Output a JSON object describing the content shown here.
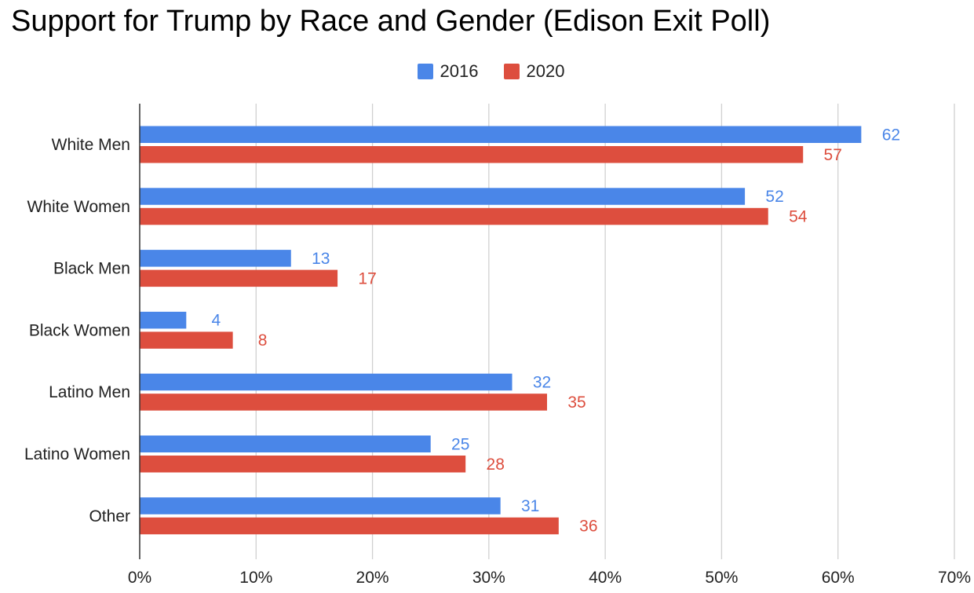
{
  "chart_data": {
    "type": "bar",
    "orientation": "horizontal",
    "title": "Support for Trump by Race and Gender (Edison Exit Poll)",
    "categories": [
      "White Men",
      "White Women",
      "Black Men",
      "Black Women",
      "Latino Men",
      "Latino Women",
      "Other"
    ],
    "series": [
      {
        "name": "2016",
        "color": "#4a86e8",
        "label_color": "#4a86e8",
        "values": [
          62,
          52,
          13,
          4,
          32,
          25,
          31
        ]
      },
      {
        "name": "2020",
        "color": "#dd4e3e",
        "label_color": "#dd4e3e",
        "values": [
          57,
          54,
          17,
          8,
          35,
          28,
          36
        ]
      }
    ],
    "xlim": [
      0,
      70
    ],
    "x_ticks": [
      0,
      10,
      20,
      30,
      40,
      50,
      60,
      70
    ],
    "x_tick_labels": [
      "0%",
      "10%",
      "20%",
      "30%",
      "40%",
      "50%",
      "60%",
      "70%"
    ],
    "grid": "vertical",
    "legend_position": "top-center",
    "data_labels": true
  }
}
